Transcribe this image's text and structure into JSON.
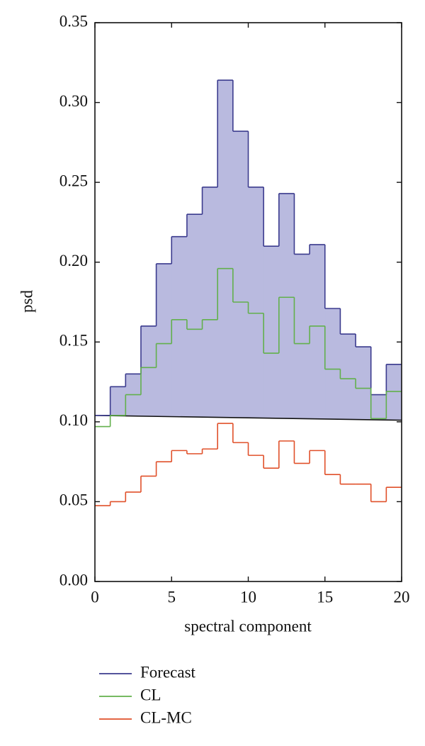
{
  "chart_data": {
    "type": "step-histogram",
    "xlabel": "spectral component",
    "ylabel": "psd",
    "bins": [
      0,
      1,
      2,
      3,
      4,
      5,
      6,
      7,
      8,
      9,
      10,
      11,
      12,
      13,
      14,
      15,
      16,
      17,
      18,
      19,
      20
    ],
    "series": [
      {
        "name": "Forecast",
        "color": "#3b3b8e",
        "fill": "#b9badf",
        "values": [
          0.104,
          0.122,
          0.13,
          0.16,
          0.199,
          0.216,
          0.23,
          0.247,
          0.314,
          0.282,
          0.247,
          0.21,
          0.243,
          0.205,
          0.211,
          0.171,
          0.155,
          0.147,
          0.117,
          0.136
        ]
      },
      {
        "name": "CL",
        "color": "#62b04c",
        "values": [
          0.097,
          0.104,
          0.117,
          0.134,
          0.149,
          0.164,
          0.158,
          0.164,
          0.196,
          0.175,
          0.168,
          0.143,
          0.178,
          0.149,
          0.16,
          0.133,
          0.127,
          0.121,
          0.102,
          0.119
        ]
      },
      {
        "name": "CL-MC",
        "color": "#e0502a",
        "values": [
          0.0475,
          0.05,
          0.056,
          0.066,
          0.075,
          0.082,
          0.08,
          0.083,
          0.099,
          0.087,
          0.079,
          0.071,
          0.088,
          0.074,
          0.082,
          0.067,
          0.061,
          0.061,
          0.05,
          0.059
        ]
      }
    ],
    "reference_line": {
      "color": "#111111",
      "x": [
        0,
        20
      ],
      "values": [
        0.104,
        0.101
      ]
    },
    "xlim": [
      0,
      20
    ],
    "xticks": [
      0,
      5,
      10,
      15,
      20
    ],
    "ylim": [
      0,
      0.35
    ],
    "yticks": [
      {
        "value": 0,
        "label": "0.00"
      },
      0.05,
      {
        "value": 0.1,
        "label": "0.10"
      },
      0.15,
      {
        "value": 0.2,
        "label": "0.20"
      },
      0.25,
      {
        "value": 0.3,
        "label": "0.30"
      },
      0.35
    ],
    "legend": "bottom"
  }
}
